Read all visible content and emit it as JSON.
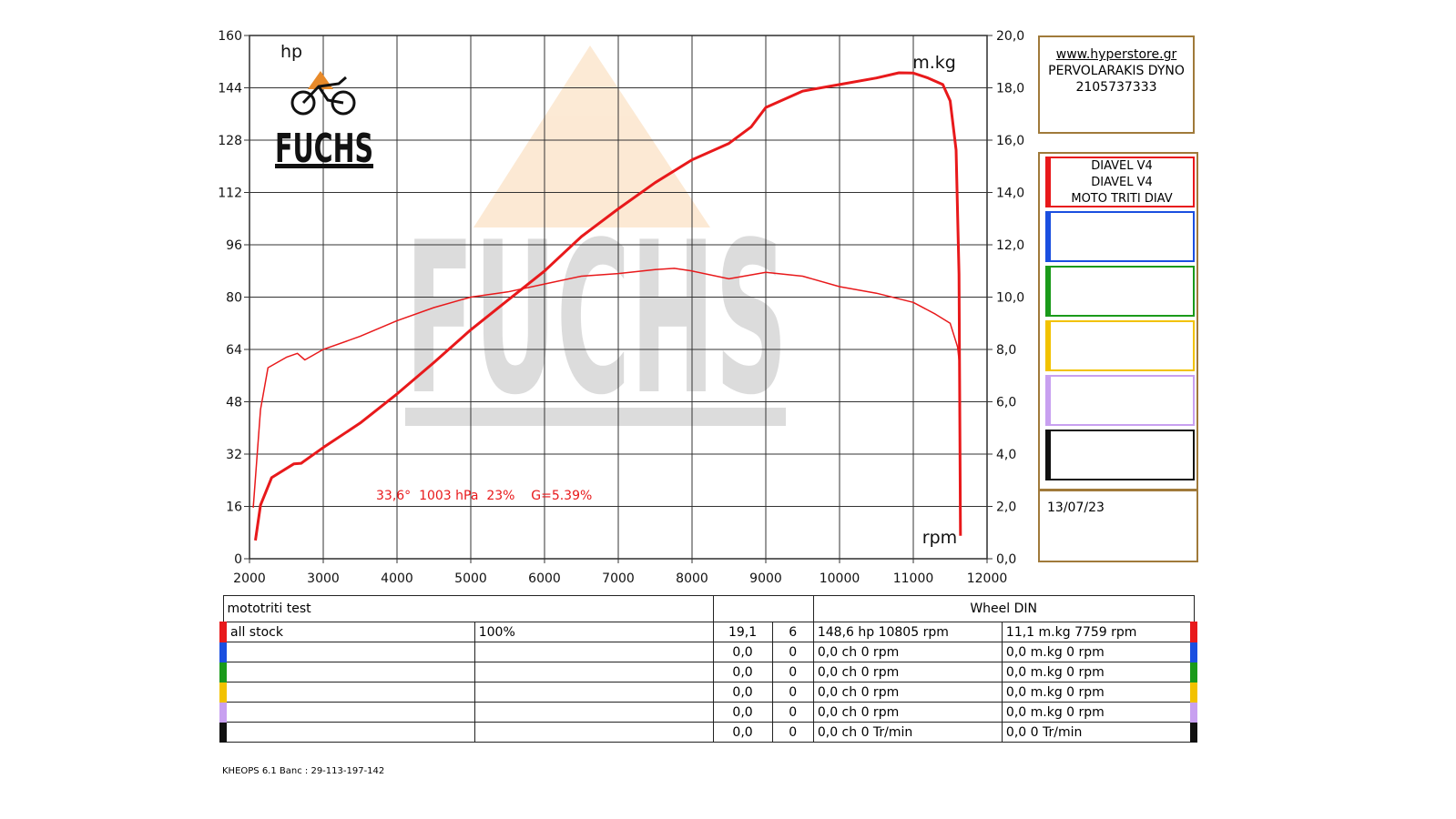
{
  "chart_data": {
    "type": "line",
    "xlabel": "rpm",
    "ylabel": "hp",
    "y2label": "m.kg",
    "xlim": [
      2000,
      12000
    ],
    "ylim": [
      0,
      160
    ],
    "y2lim": [
      0,
      20
    ],
    "xticks": [
      "2000",
      "3000",
      "4000",
      "5000",
      "6000",
      "7000",
      "8000",
      "9000",
      "10000",
      "11000",
      "12000"
    ],
    "yticks": [
      "0",
      "16",
      "32",
      "48",
      "64",
      "80",
      "96",
      "112",
      "128",
      "144",
      "160"
    ],
    "y2ticks": [
      "0,0",
      "2,0",
      "4,0",
      "6,0",
      "8,0",
      "10,0",
      "12,0",
      "14,0",
      "16,0",
      "18,0",
      "20,0"
    ],
    "grid": true,
    "annotation": "33,6°  1003 hPa  23%    G=5.39%",
    "series": [
      {
        "name": "power",
        "axis": "left",
        "color": "#e8191b",
        "x": [
          2080,
          2150,
          2300,
          2600,
          2700,
          3000,
          3500,
          4000,
          4500,
          5000,
          5500,
          6000,
          6500,
          7000,
          7500,
          8000,
          8500,
          8800,
          9000,
          9500,
          10000,
          10500,
          10805,
          11000,
          11200,
          11400,
          11500,
          11580,
          11620,
          11640
        ],
        "y": [
          5.6,
          16.4,
          24.8,
          29,
          29.2,
          34,
          41.5,
          50.4,
          60,
          70,
          79,
          88,
          98.5,
          107,
          115,
          122,
          127,
          132,
          138,
          143,
          145,
          147,
          148.6,
          148.5,
          147,
          145,
          140,
          125,
          87,
          7
        ]
      },
      {
        "name": "torque",
        "axis": "right",
        "color": "#e8191b",
        "x": [
          2050,
          2150,
          2250,
          2500,
          2650,
          2750,
          3000,
          3500,
          4000,
          4500,
          5000,
          5500,
          6000,
          6500,
          7000,
          7500,
          7759,
          8000,
          8500,
          9000,
          9500,
          10000,
          10500,
          11000,
          11300,
          11500,
          11600,
          11620
        ],
        "y": [
          1.95,
          5.7,
          7.3,
          7.7,
          7.85,
          7.6,
          8.0,
          8.5,
          9.1,
          9.6,
          10.0,
          10.2,
          10.5,
          10.8,
          10.9,
          11.05,
          11.1,
          11.0,
          10.7,
          10.95,
          10.8,
          10.4,
          10.15,
          9.8,
          9.35,
          9.0,
          8.1,
          7.6
        ]
      }
    ]
  },
  "logo": {
    "text": "FUCHS"
  },
  "info": {
    "site": "www.hyperstore.gr",
    "name": "PERVOLARAKIS DYNO",
    "phone": "2105737333"
  },
  "legend": [
    {
      "color": "#e8191b",
      "lines": [
        "DIAVEL V4",
        "DIAVEL V4",
        "MOTO TRITI DIAV"
      ]
    },
    {
      "color": "#1a4fe0",
      "lines": []
    },
    {
      "color": "#1a9a1a",
      "lines": []
    },
    {
      "color": "#f2c200",
      "lines": []
    },
    {
      "color": "#c8a0f0",
      "lines": []
    },
    {
      "color": "#111111",
      "lines": []
    }
  ],
  "date": "13/07/23",
  "table": {
    "title": "mototriti test",
    "header_right": "Wheel DIN",
    "rows": [
      {
        "color": "#e8191b",
        "name": "all stock",
        "pct": "100%",
        "a": "19,1",
        "b": "6",
        "power": "148,6 hp 10805 rpm",
        "torque": "11,1 m.kg 7759 rpm"
      },
      {
        "color": "#1a4fe0",
        "name": "",
        "pct": "",
        "a": "0,0",
        "b": "0",
        "power": "0,0 ch 0 rpm",
        "torque": "0,0 m.kg 0 rpm"
      },
      {
        "color": "#1a9a1a",
        "name": "",
        "pct": "",
        "a": "0,0",
        "b": "0",
        "power": "0,0 ch 0 rpm",
        "torque": "0,0 m.kg 0 rpm"
      },
      {
        "color": "#f2c200",
        "name": "",
        "pct": "",
        "a": "0,0",
        "b": "0",
        "power": "0,0 ch 0 rpm",
        "torque": "0,0 m.kg 0 rpm"
      },
      {
        "color": "#c8a0f0",
        "name": "",
        "pct": "",
        "a": "0,0",
        "b": "0",
        "power": "0,0 ch 0 rpm",
        "torque": "0,0 m.kg 0 rpm"
      },
      {
        "color": "#111111",
        "name": "",
        "pct": "",
        "a": "0,0",
        "b": "0",
        "power": "0,0 ch 0 Tr/min",
        "torque": "0,0  0 Tr/min"
      }
    ]
  },
  "footer": "KHEOPS 6.1  Banc : 29-113-197-142"
}
